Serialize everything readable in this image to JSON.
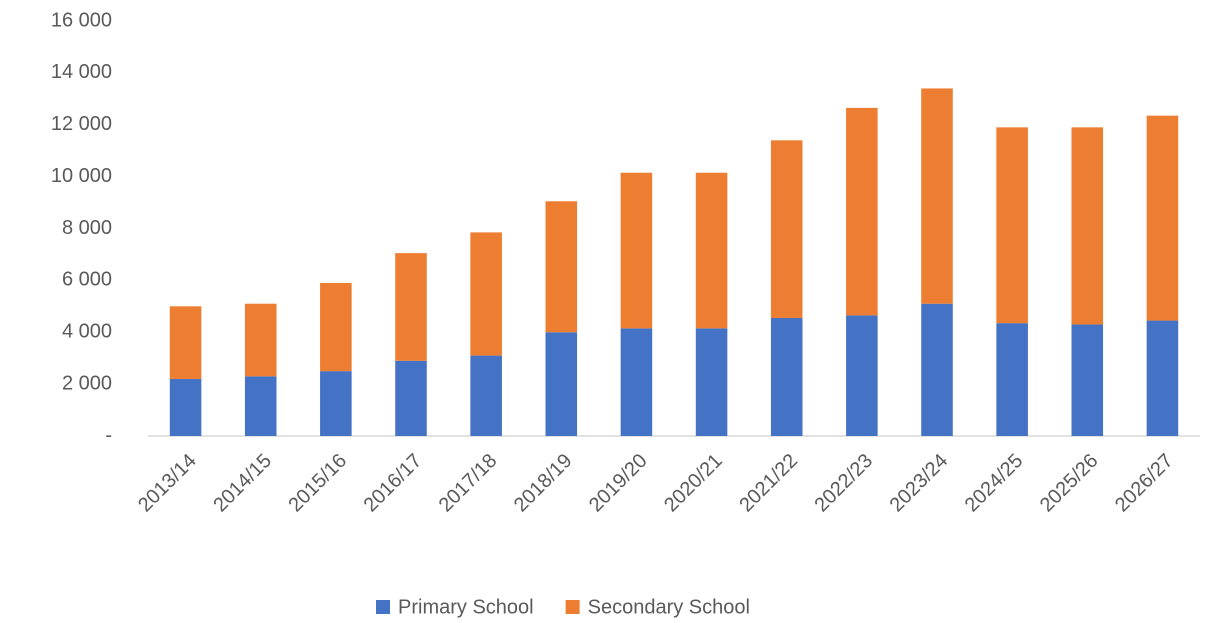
{
  "chart_data": {
    "type": "stacked_bar",
    "categories": [
      "2013/14",
      "2014/15",
      "2015/16",
      "2016/17",
      "2017/18",
      "2018/19",
      "2019/20",
      "2020/21",
      "2021/22",
      "2022/23",
      "2023/24",
      "2024/25",
      "2025/26",
      "2026/27"
    ],
    "series": [
      {
        "name": "Primary School",
        "color": "#4472c4",
        "values": [
          2200,
          2300,
          2500,
          2900,
          3100,
          4000,
          4150,
          4150,
          4550,
          4650,
          5100,
          4350,
          4300,
          4450
        ]
      },
      {
        "name": "Secondary School",
        "color": "#ed7d31",
        "values": [
          2800,
          2800,
          3400,
          4150,
          4750,
          5050,
          6000,
          6000,
          6850,
          8000,
          8300,
          7550,
          7600,
          7900
        ]
      }
    ],
    "ylim": [
      0,
      16000
    ],
    "yticks": [
      {
        "value": 0,
        "label": "-"
      },
      {
        "value": 2000,
        "label": "2 000"
      },
      {
        "value": 4000,
        "label": "4 000"
      },
      {
        "value": 6000,
        "label": "6 000"
      },
      {
        "value": 8000,
        "label": "8 000"
      },
      {
        "value": 10000,
        "label": "10 000"
      },
      {
        "value": 12000,
        "label": "12 000"
      },
      {
        "value": 14000,
        "label": "14 000"
      },
      {
        "value": 16000,
        "label": "16 000"
      }
    ],
    "grid": false,
    "legend": "bottom"
  }
}
